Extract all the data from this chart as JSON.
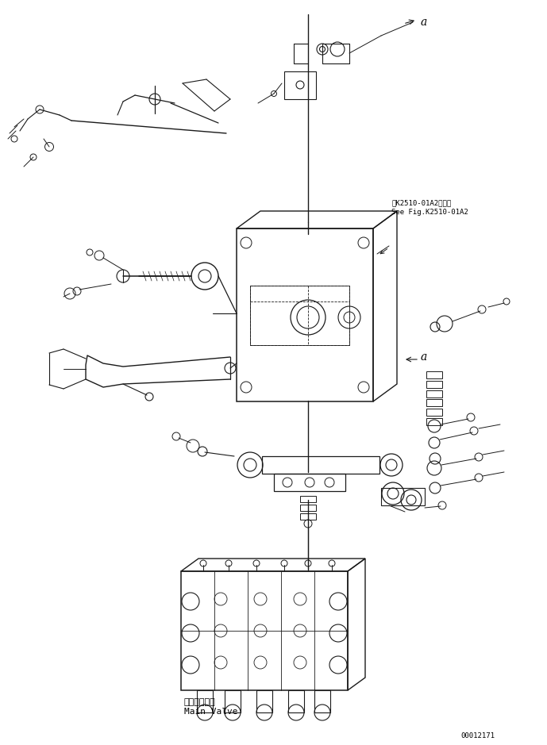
{
  "bg_color": "#ffffff",
  "line_color": "#1a1a1a",
  "fig_width": 6.89,
  "fig_height": 9.39,
  "dpi": 100,
  "annotation_ref_line1": "第K2510-01A2図参照",
  "annotation_ref_line2": "See Fig.K2510-01A2",
  "label_main_valve_jp": "メインバルブ",
  "label_main_valve_en": "Main Valve",
  "part_number": "00012171",
  "label_a": "a"
}
